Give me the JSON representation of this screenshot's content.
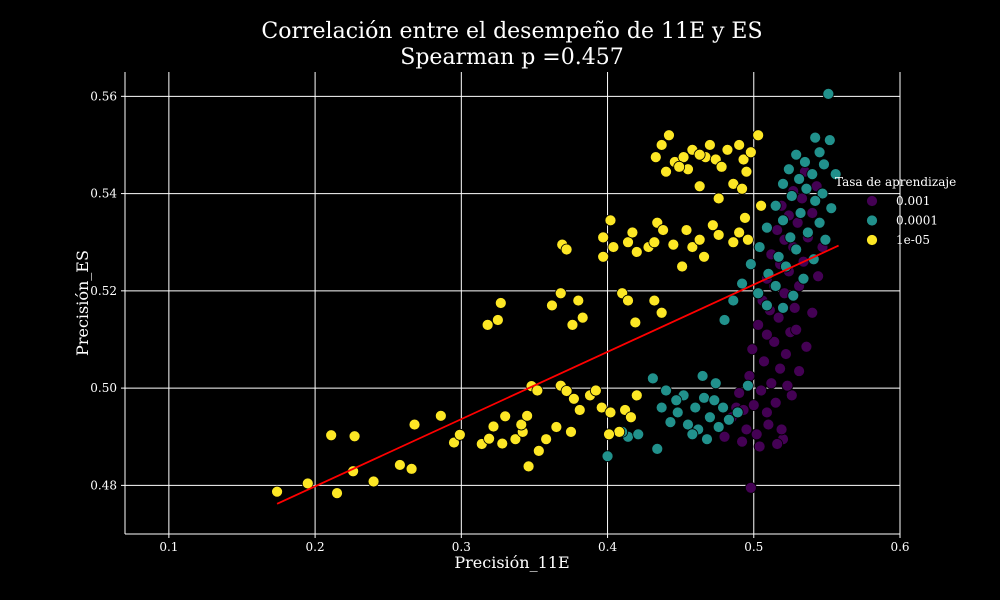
{
  "chart_data": {
    "type": "scatter",
    "title": "Correlación entre el desempeño de 11E y ES",
    "subtitle": "Spearman p =0.457",
    "xlabel": "Precisión_11E",
    "ylabel": "Precisión_ES",
    "xlim": [
      0.07,
      0.6
    ],
    "ylim": [
      0.47,
      0.565
    ],
    "xticks": [
      0.1,
      0.2,
      0.3,
      0.4,
      0.5,
      0.6
    ],
    "yticks": [
      0.48,
      0.5,
      0.52,
      0.54,
      0.56
    ],
    "xtick_labels": [
      "0.1",
      "0.2",
      "0.3",
      "0.4",
      "0.5",
      "0.6"
    ],
    "ytick_labels": [
      "0.48",
      "0.50",
      "0.52",
      "0.54",
      "0.56"
    ],
    "grid": true,
    "legend": {
      "title": "Tasa de aprendizaje",
      "placement": "right"
    },
    "series": [
      {
        "name": "0.001",
        "color": "#440154",
        "points": [
          [
            0.498,
            0.4795
          ],
          [
            0.504,
            0.488
          ],
          [
            0.52,
            0.4895
          ],
          [
            0.495,
            0.4915
          ],
          [
            0.51,
            0.4925
          ],
          [
            0.485,
            0.494
          ],
          [
            0.5,
            0.4965
          ],
          [
            0.515,
            0.497
          ],
          [
            0.49,
            0.499
          ],
          [
            0.505,
            0.4995
          ],
          [
            0.512,
            0.501
          ],
          [
            0.497,
            0.5025
          ],
          [
            0.518,
            0.504
          ],
          [
            0.507,
            0.5055
          ],
          [
            0.522,
            0.507
          ],
          [
            0.499,
            0.508
          ],
          [
            0.514,
            0.5095
          ],
          [
            0.509,
            0.511
          ],
          [
            0.525,
            0.5115
          ],
          [
            0.503,
            0.513
          ],
          [
            0.517,
            0.5145
          ],
          [
            0.511,
            0.516
          ],
          [
            0.528,
            0.5165
          ],
          [
            0.506,
            0.518
          ],
          [
            0.521,
            0.5195
          ],
          [
            0.514,
            0.521
          ],
          [
            0.531,
            0.521
          ],
          [
            0.509,
            0.5225
          ],
          [
            0.524,
            0.524
          ],
          [
            0.518,
            0.5255
          ],
          [
            0.534,
            0.526
          ],
          [
            0.512,
            0.5275
          ],
          [
            0.527,
            0.529
          ],
          [
            0.521,
            0.5305
          ],
          [
            0.537,
            0.531
          ],
          [
            0.516,
            0.5325
          ],
          [
            0.53,
            0.534
          ],
          [
            0.524,
            0.5355
          ],
          [
            0.54,
            0.536
          ],
          [
            0.519,
            0.5375
          ],
          [
            0.533,
            0.539
          ],
          [
            0.527,
            0.5405
          ],
          [
            0.543,
            0.5415
          ],
          [
            0.535,
            0.5445
          ],
          [
            0.48,
            0.49
          ],
          [
            0.492,
            0.489
          ],
          [
            0.488,
            0.496
          ],
          [
            0.509,
            0.495
          ],
          [
            0.526,
            0.4985
          ],
          [
            0.519,
            0.4915
          ],
          [
            0.493,
            0.4955
          ],
          [
            0.531,
            0.5035
          ],
          [
            0.536,
            0.5085
          ],
          [
            0.54,
            0.5155
          ],
          [
            0.544,
            0.523
          ],
          [
            0.547,
            0.529
          ],
          [
            0.523,
            0.5005
          ],
          [
            0.502,
            0.4905
          ],
          [
            0.516,
            0.4885
          ],
          [
            0.529,
            0.512
          ]
        ]
      },
      {
        "name": "0.0001",
        "color": "#21918c",
        "points": [
          [
            0.551,
            0.5605
          ],
          [
            0.542,
            0.5515
          ],
          [
            0.552,
            0.551
          ],
          [
            0.529,
            0.548
          ],
          [
            0.545,
            0.5485
          ],
          [
            0.535,
            0.5465
          ],
          [
            0.548,
            0.546
          ],
          [
            0.524,
            0.545
          ],
          [
            0.54,
            0.544
          ],
          [
            0.531,
            0.543
          ],
          [
            0.556,
            0.544
          ],
          [
            0.52,
            0.542
          ],
          [
            0.536,
            0.541
          ],
          [
            0.547,
            0.54
          ],
          [
            0.526,
            0.5395
          ],
          [
            0.542,
            0.5385
          ],
          [
            0.515,
            0.5375
          ],
          [
            0.553,
            0.537
          ],
          [
            0.532,
            0.536
          ],
          [
            0.52,
            0.5345
          ],
          [
            0.545,
            0.534
          ],
          [
            0.509,
            0.533
          ],
          [
            0.537,
            0.532
          ],
          [
            0.525,
            0.531
          ],
          [
            0.549,
            0.5305
          ],
          [
            0.504,
            0.529
          ],
          [
            0.529,
            0.5285
          ],
          [
            0.517,
            0.527
          ],
          [
            0.541,
            0.5265
          ],
          [
            0.498,
            0.5255
          ],
          [
            0.522,
            0.525
          ],
          [
            0.51,
            0.5235
          ],
          [
            0.534,
            0.5225
          ],
          [
            0.492,
            0.5215
          ],
          [
            0.515,
            0.521
          ],
          [
            0.503,
            0.5195
          ],
          [
            0.527,
            0.519
          ],
          [
            0.486,
            0.518
          ],
          [
            0.509,
            0.517
          ],
          [
            0.52,
            0.5165
          ],
          [
            0.48,
            0.514
          ],
          [
            0.431,
            0.502
          ],
          [
            0.44,
            0.4995
          ],
          [
            0.452,
            0.4985
          ],
          [
            0.437,
            0.496
          ],
          [
            0.448,
            0.495
          ],
          [
            0.46,
            0.496
          ],
          [
            0.466,
            0.498
          ],
          [
            0.473,
            0.4975
          ],
          [
            0.479,
            0.496
          ],
          [
            0.443,
            0.493
          ],
          [
            0.455,
            0.4925
          ],
          [
            0.462,
            0.4915
          ],
          [
            0.47,
            0.494
          ],
          [
            0.476,
            0.492
          ],
          [
            0.483,
            0.4935
          ],
          [
            0.489,
            0.495
          ],
          [
            0.434,
            0.4875
          ],
          [
            0.468,
            0.4895
          ],
          [
            0.458,
            0.4905
          ],
          [
            0.4,
            0.486
          ],
          [
            0.414,
            0.49
          ],
          [
            0.421,
            0.4905
          ],
          [
            0.41,
            0.491
          ],
          [
            0.447,
            0.4975
          ],
          [
            0.465,
            0.5025
          ],
          [
            0.474,
            0.501
          ],
          [
            0.496,
            0.5005
          ]
        ]
      },
      {
        "name": "1e-05",
        "color": "#fde725",
        "points": [
          [
            0.174,
            0.4787
          ],
          [
            0.195,
            0.4804
          ],
          [
            0.215,
            0.4784
          ],
          [
            0.24,
            0.4808
          ],
          [
            0.226,
            0.4829
          ],
          [
            0.266,
            0.4834
          ],
          [
            0.258,
            0.4842
          ],
          [
            0.211,
            0.4903
          ],
          [
            0.227,
            0.4901
          ],
          [
            0.268,
            0.4925
          ],
          [
            0.286,
            0.4943
          ],
          [
            0.295,
            0.4888
          ],
          [
            0.299,
            0.4904
          ],
          [
            0.314,
            0.4885
          ],
          [
            0.319,
            0.4896
          ],
          [
            0.328,
            0.4886
          ],
          [
            0.337,
            0.4895
          ],
          [
            0.342,
            0.491
          ],
          [
            0.346,
            0.4839
          ],
          [
            0.353,
            0.4871
          ],
          [
            0.358,
            0.4895
          ],
          [
            0.341,
            0.4925
          ],
          [
            0.345,
            0.4943
          ],
          [
            0.33,
            0.4942
          ],
          [
            0.322,
            0.4921
          ],
          [
            0.348,
            0.5004
          ],
          [
            0.352,
            0.4995
          ],
          [
            0.368,
            0.5005
          ],
          [
            0.372,
            0.4994
          ],
          [
            0.377,
            0.4978
          ],
          [
            0.381,
            0.4955
          ],
          [
            0.388,
            0.4985
          ],
          [
            0.392,
            0.4995
          ],
          [
            0.396,
            0.496
          ],
          [
            0.402,
            0.495
          ],
          [
            0.408,
            0.491
          ],
          [
            0.412,
            0.4955
          ],
          [
            0.416,
            0.494
          ],
          [
            0.42,
            0.4985
          ],
          [
            0.365,
            0.492
          ],
          [
            0.375,
            0.491
          ],
          [
            0.401,
            0.4905
          ],
          [
            0.318,
            0.513
          ],
          [
            0.325,
            0.514
          ],
          [
            0.327,
            0.5175
          ],
          [
            0.362,
            0.517
          ],
          [
            0.368,
            0.5195
          ],
          [
            0.376,
            0.513
          ],
          [
            0.38,
            0.518
          ],
          [
            0.383,
            0.5145
          ],
          [
            0.41,
            0.5195
          ],
          [
            0.414,
            0.518
          ],
          [
            0.419,
            0.5135
          ],
          [
            0.432,
            0.518
          ],
          [
            0.437,
            0.5155
          ],
          [
            0.369,
            0.5295
          ],
          [
            0.372,
            0.5285
          ],
          [
            0.397,
            0.531
          ],
          [
            0.402,
            0.5345
          ],
          [
            0.404,
            0.529
          ],
          [
            0.397,
            0.527
          ],
          [
            0.414,
            0.53
          ],
          [
            0.417,
            0.532
          ],
          [
            0.42,
            0.528
          ],
          [
            0.428,
            0.529
          ],
          [
            0.432,
            0.53
          ],
          [
            0.434,
            0.534
          ],
          [
            0.438,
            0.5325
          ],
          [
            0.445,
            0.5295
          ],
          [
            0.451,
            0.525
          ],
          [
            0.454,
            0.5325
          ],
          [
            0.458,
            0.529
          ],
          [
            0.463,
            0.5305
          ],
          [
            0.466,
            0.527
          ],
          [
            0.472,
            0.5335
          ],
          [
            0.476,
            0.5315
          ],
          [
            0.486,
            0.53
          ],
          [
            0.49,
            0.532
          ],
          [
            0.494,
            0.535
          ],
          [
            0.496,
            0.5305
          ],
          [
            0.433,
            0.5475
          ],
          [
            0.437,
            0.55
          ],
          [
            0.44,
            0.5445
          ],
          [
            0.442,
            0.552
          ],
          [
            0.446,
            0.5465
          ],
          [
            0.452,
            0.5475
          ],
          [
            0.455,
            0.545
          ],
          [
            0.458,
            0.549
          ],
          [
            0.463,
            0.5415
          ],
          [
            0.467,
            0.5475
          ],
          [
            0.47,
            0.55
          ],
          [
            0.474,
            0.547
          ],
          [
            0.478,
            0.5455
          ],
          [
            0.482,
            0.549
          ],
          [
            0.486,
            0.542
          ],
          [
            0.49,
            0.55
          ],
          [
            0.493,
            0.547
          ],
          [
            0.495,
            0.5445
          ],
          [
            0.498,
            0.5485
          ],
          [
            0.503,
            0.552
          ],
          [
            0.476,
            0.539
          ],
          [
            0.492,
            0.541
          ],
          [
            0.505,
            0.5375
          ],
          [
            0.463,
            0.548
          ],
          [
            0.449,
            0.5455
          ]
        ]
      }
    ],
    "regression_line": {
      "color": "#ff0000",
      "x": [
        0.174,
        0.558
      ],
      "y": [
        0.4762,
        0.5293
      ]
    }
  }
}
